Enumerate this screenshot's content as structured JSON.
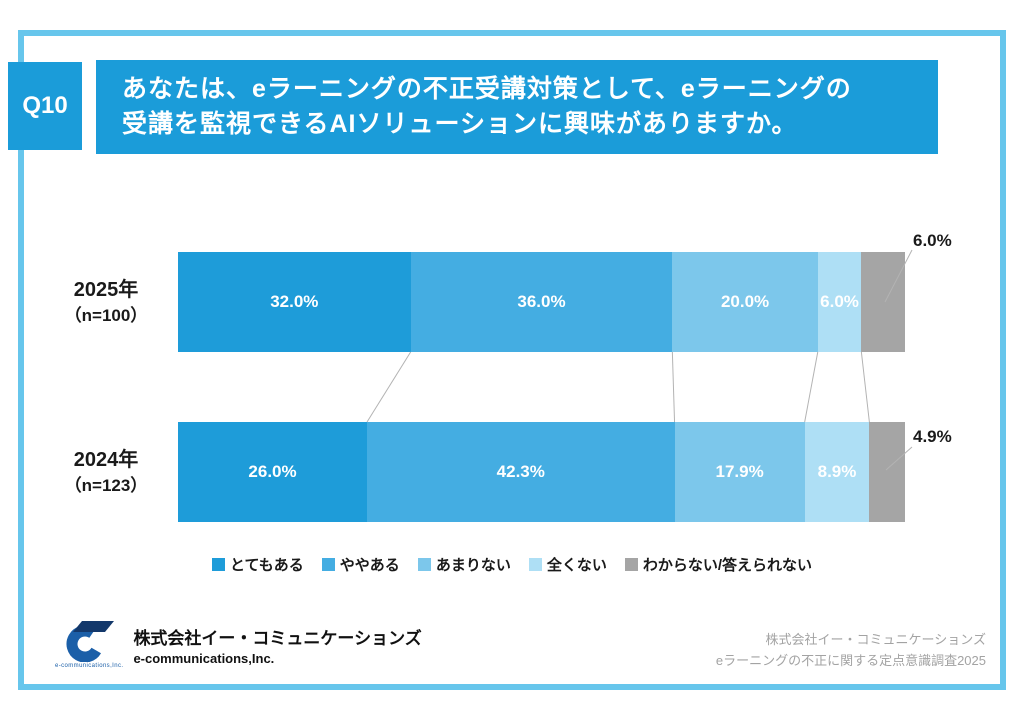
{
  "page": {
    "frame_color": "#67c6ec",
    "accent_color": "#1b9cd9"
  },
  "header": {
    "q_label": "Q10",
    "title_line1": "あなたは、eラーニングの不正受講対策として、eラーニングの",
    "title_line2": "受講を監視できるAIソリューションに興味がありますか。"
  },
  "chart_data": {
    "type": "bar",
    "variant": "horizontal-stacked",
    "xlim": [
      0,
      100
    ],
    "categories": [
      {
        "year": "2025年",
        "n_label": "（n=100）"
      },
      {
        "year": "2024年",
        "n_label": "（n=123）"
      }
    ],
    "series": [
      {
        "name": "とてもある",
        "color": "#1e9cd9",
        "values": [
          32.0,
          26.0
        ]
      },
      {
        "name": "ややある",
        "color": "#44ade2",
        "values": [
          36.0,
          42.3
        ]
      },
      {
        "name": "あまりない",
        "color": "#7cc7eb",
        "values": [
          20.0,
          17.9
        ]
      },
      {
        "name": "全くない",
        "color": "#aedff5",
        "values": [
          6.0,
          8.9
        ]
      },
      {
        "name": "わからない/答えられない",
        "color": "#a5a5a5",
        "values": [
          6.0,
          4.9
        ]
      }
    ],
    "inside_labels": [
      [
        "32.0%",
        "36.0%",
        "20.0%",
        "6.0%"
      ],
      [
        "26.0%",
        "42.3%",
        "17.9%",
        "8.9%"
      ]
    ],
    "outside_labels": [
      "6.0%",
      "4.9%"
    ],
    "legend_position": "bottom",
    "grid": false
  },
  "footer": {
    "company_name": "株式会社イー・コミュニケーションズ",
    "company_en": "e-communications,Inc.",
    "logo_caption": "e-communications,Inc.",
    "credit_line1": "株式会社イー・コミュニケーションズ",
    "credit_line2": "eラーニングの不正に関する定点意識調査2025"
  }
}
